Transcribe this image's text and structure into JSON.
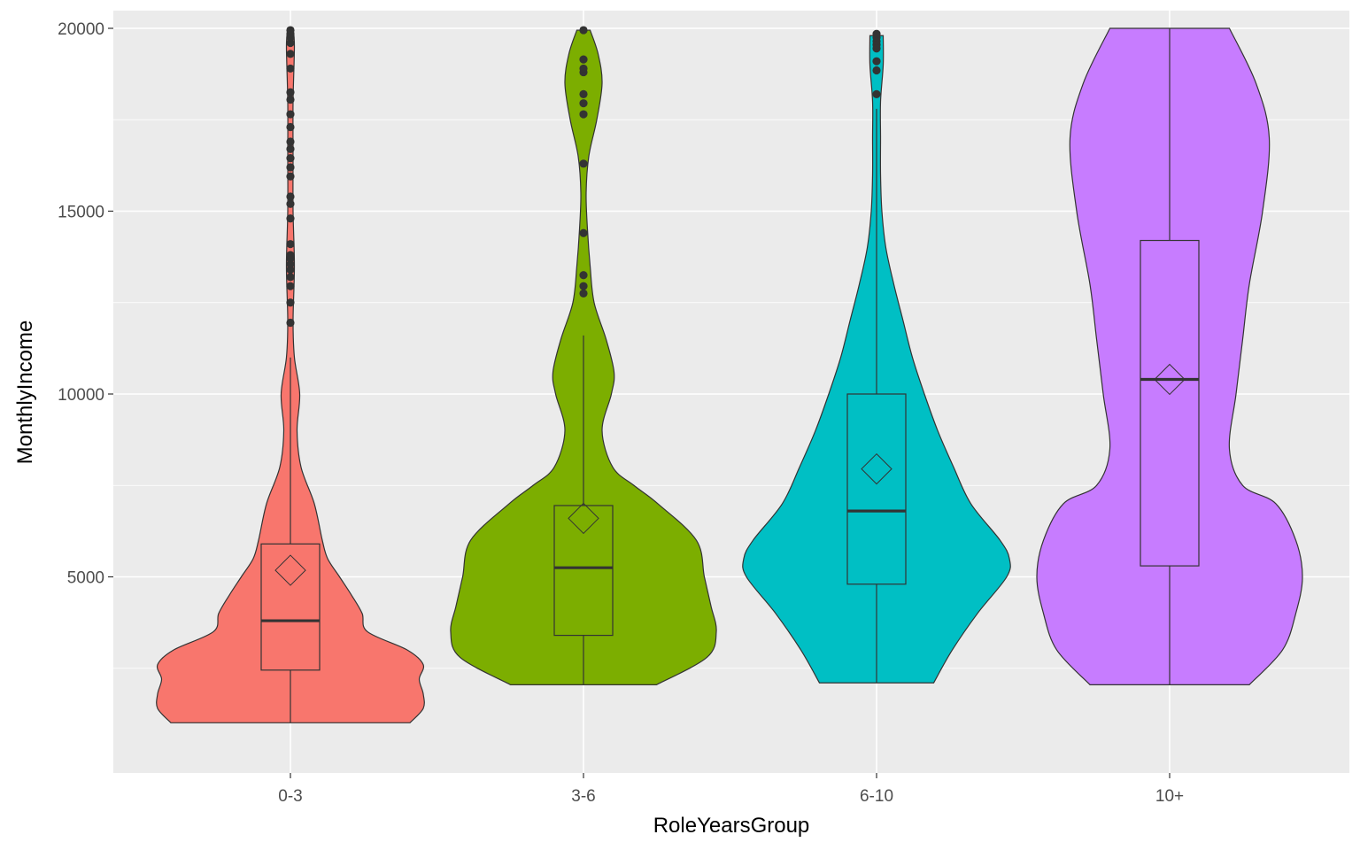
{
  "chart_data": {
    "type": "violin",
    "xlabel": "RoleYearsGroup",
    "ylabel": "MonthlyIncome",
    "ylim": [
      0,
      20800
    ],
    "y_ticks": [
      5000,
      10000,
      15000,
      20000
    ],
    "y_tick_labels": [
      "5000",
      "10000",
      "15000",
      "20000"
    ],
    "background": "#ebebeb",
    "grid": true,
    "categories": [
      "0-3",
      "3-6",
      "6-10",
      "10+"
    ],
    "groups": [
      {
        "category": "0-3",
        "color": "#f8766d",
        "box": {
          "whisker_low": 1009,
          "q1": 2450,
          "median": 3800,
          "q3": 5900,
          "whisker_high": 11000
        },
        "mean": 5180,
        "outliers": [
          11950,
          12500,
          12950,
          13200,
          13400,
          13550,
          13700,
          13800,
          14100,
          14800,
          15200,
          15400,
          15950,
          16200,
          16450,
          16700,
          16900,
          17300,
          17650,
          18050,
          18250,
          18900,
          19300,
          19600,
          19750,
          19850,
          19950
        ],
        "density": [
          [
            1009,
            0.9
          ],
          [
            1400,
            1.0
          ],
          [
            1800,
            1.0
          ],
          [
            2200,
            0.97
          ],
          [
            2600,
            1.0
          ],
          [
            3000,
            0.88
          ],
          [
            3500,
            0.58
          ],
          [
            4000,
            0.54
          ],
          [
            4500,
            0.46
          ],
          [
            5000,
            0.37
          ],
          [
            5500,
            0.28
          ],
          [
            6000,
            0.24
          ],
          [
            7000,
            0.18
          ],
          [
            8000,
            0.08
          ],
          [
            9000,
            0.05
          ],
          [
            10000,
            0.07
          ],
          [
            11000,
            0.03
          ],
          [
            12000,
            0.02
          ],
          [
            13500,
            0.03
          ],
          [
            15000,
            0.02
          ],
          [
            16500,
            0.02
          ],
          [
            18000,
            0.02
          ],
          [
            19500,
            0.03
          ],
          [
            20000,
            0.02
          ]
        ]
      },
      {
        "category": "3-6",
        "color": "#7cae00",
        "box": {
          "whisker_low": 2050,
          "q1": 3400,
          "median": 5250,
          "q3": 6950,
          "whisker_high": 11600
        },
        "mean": 6600,
        "outliers": [
          12750,
          12950,
          13250,
          14400,
          16300,
          17650,
          17950,
          18200,
          18800,
          18900,
          19150,
          19950
        ],
        "density": [
          [
            2050,
            0.55
          ],
          [
            2800,
            0.93
          ],
          [
            3500,
            1.0
          ],
          [
            4200,
            0.96
          ],
          [
            5000,
            0.91
          ],
          [
            6000,
            0.85
          ],
          [
            7000,
            0.56
          ],
          [
            7500,
            0.38
          ],
          [
            8000,
            0.22
          ],
          [
            9000,
            0.14
          ],
          [
            10000,
            0.21
          ],
          [
            10600,
            0.23
          ],
          [
            11500,
            0.17
          ],
          [
            12500,
            0.08
          ],
          [
            13500,
            0.05
          ],
          [
            14500,
            0.03
          ],
          [
            15500,
            0.02
          ],
          [
            16500,
            0.04
          ],
          [
            17500,
            0.1
          ],
          [
            18500,
            0.14
          ],
          [
            19300,
            0.11
          ],
          [
            19950,
            0.05
          ]
        ]
      },
      {
        "category": "6-10",
        "color": "#00bfc4",
        "box": {
          "whisker_low": 2100,
          "q1": 4800,
          "median": 6800,
          "q3": 10000,
          "whisker_high": 17800
        },
        "mean": 7950,
        "outliers": [
          18200,
          18850,
          19100,
          19450,
          19550,
          19650,
          19750,
          19850
        ],
        "density": [
          [
            2100,
            0.43
          ],
          [
            3000,
            0.57
          ],
          [
            4000,
            0.76
          ],
          [
            5000,
            0.98
          ],
          [
            5500,
            1.0
          ],
          [
            6000,
            0.93
          ],
          [
            7000,
            0.71
          ],
          [
            8000,
            0.58
          ],
          [
            9000,
            0.46
          ],
          [
            10000,
            0.36
          ],
          [
            11000,
            0.27
          ],
          [
            12000,
            0.2
          ],
          [
            13000,
            0.13
          ],
          [
            14000,
            0.07
          ],
          [
            15000,
            0.04
          ],
          [
            16000,
            0.03
          ],
          [
            17000,
            0.03
          ],
          [
            18000,
            0.03
          ],
          [
            19000,
            0.05
          ],
          [
            19800,
            0.05
          ]
        ]
      },
      {
        "category": "10+",
        "color": "#c77cff",
        "box": {
          "whisker_low": 2050,
          "q1": 5300,
          "median": 10400,
          "q3": 14200,
          "whisker_high": 20000
        },
        "mean": 10400,
        "outliers": [],
        "density": [
          [
            2050,
            0.6
          ],
          [
            3000,
            0.85
          ],
          [
            4000,
            0.95
          ],
          [
            5000,
            1.0
          ],
          [
            6000,
            0.95
          ],
          [
            7000,
            0.8
          ],
          [
            7500,
            0.55
          ],
          [
            8500,
            0.45
          ],
          [
            10000,
            0.5
          ],
          [
            11500,
            0.55
          ],
          [
            13000,
            0.6
          ],
          [
            15000,
            0.7
          ],
          [
            17000,
            0.75
          ],
          [
            18500,
            0.65
          ],
          [
            20000,
            0.45
          ]
        ]
      }
    ]
  }
}
